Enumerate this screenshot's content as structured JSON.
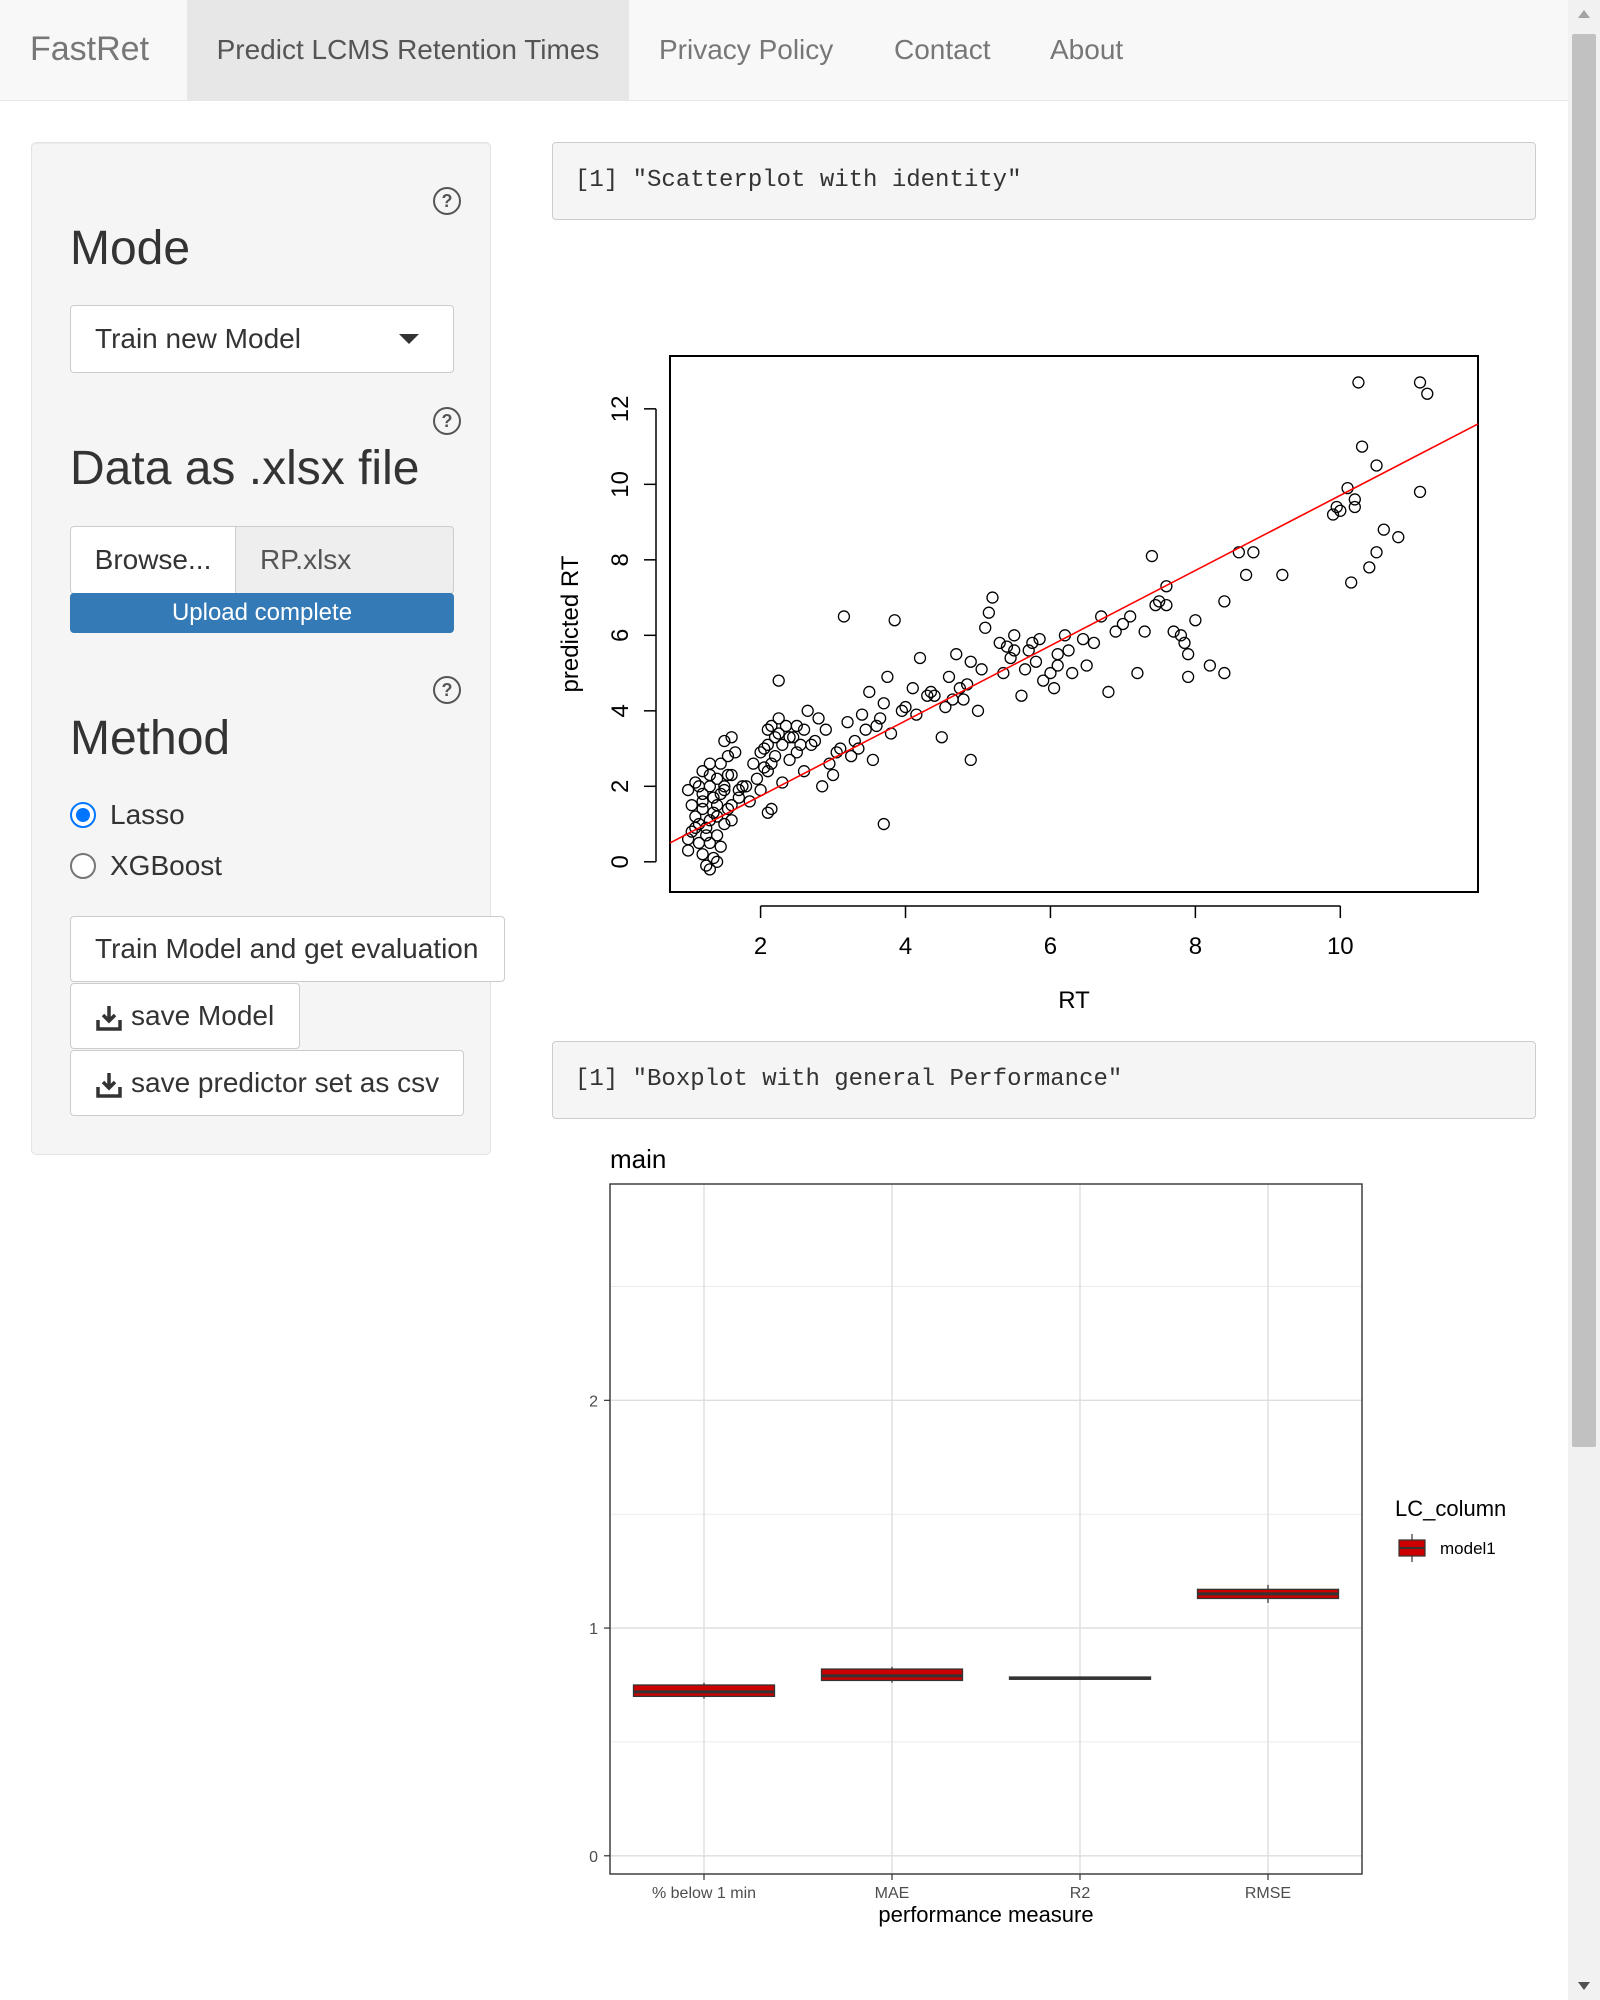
{
  "navbar": {
    "brand": "FastRet",
    "tabs": [
      {
        "label": "Predict LCMS Retention Times",
        "active": true
      },
      {
        "label": "Privacy Policy",
        "active": false
      },
      {
        "label": "Contact",
        "active": false
      },
      {
        "label": "About",
        "active": false
      }
    ]
  },
  "sidebar": {
    "help_glyph": "?",
    "mode": {
      "label": "Mode",
      "selected": "Train new Model"
    },
    "data": {
      "label": "Data as .xlsx file",
      "browse_label": "Browse...",
      "file_name": "RP.xlsx",
      "progress_text": "Upload complete",
      "progress_fraction": 1.0
    },
    "method": {
      "label": "Method",
      "options": [
        {
          "label": "Lasso",
          "checked": true
        },
        {
          "label": "XGBoost",
          "checked": false
        }
      ]
    },
    "buttons": {
      "train": "Train Model and get evaluation",
      "save_model": "save Model",
      "save_predictors": "save predictor set as csv"
    }
  },
  "main": {
    "scatter_caption": "[1] \"Scatterplot with identity\"",
    "boxplot_caption": "[1] \"Boxplot with general Performance\""
  },
  "colors": {
    "accent": "#337ab7",
    "radio": "#0075ff",
    "fit_line": "#ff0000",
    "box_fill": "#cc0000"
  },
  "chart_data": [
    {
      "type": "scatter",
      "xlabel": "RT",
      "ylabel": "predicted RT",
      "xticks": [
        "2",
        "4",
        "6",
        "8",
        "10"
      ],
      "yticks": [
        "0",
        "2",
        "4",
        "6",
        "8",
        "10",
        "12"
      ],
      "xlim": [
        0.75,
        11.9
      ],
      "ylim": [
        -0.8,
        13.4
      ],
      "reference_line": {
        "x": [
          0.75,
          11.9
        ],
        "y": [
          0.5,
          11.6
        ]
      },
      "points": [
        [
          1.0,
          0.3
        ],
        [
          1.05,
          0.8
        ],
        [
          1.1,
          1.2
        ],
        [
          1.15,
          0.5
        ],
        [
          1.2,
          1.6
        ],
        [
          1.25,
          0.9
        ],
        [
          1.3,
          2.0
        ],
        [
          1.35,
          1.3
        ],
        [
          1.4,
          0.7
        ],
        [
          1.45,
          1.8
        ],
        [
          1.0,
          1.9
        ],
        [
          1.1,
          2.1
        ],
        [
          1.2,
          2.4
        ],
        [
          1.3,
          2.6
        ],
        [
          1.4,
          2.2
        ],
        [
          1.5,
          3.2
        ],
        [
          1.55,
          2.8
        ],
        [
          1.6,
          3.3
        ],
        [
          1.35,
          0.1
        ],
        [
          1.25,
          -0.1
        ],
        [
          1.3,
          -0.2
        ],
        [
          1.4,
          0.0
        ],
        [
          1.15,
          1.0
        ],
        [
          1.2,
          1.4
        ],
        [
          1.3,
          1.1
        ],
        [
          1.4,
          1.5
        ],
        [
          1.5,
          1.9
        ],
        [
          1.6,
          2.3
        ],
        [
          1.7,
          1.7
        ],
        [
          1.8,
          2.0
        ],
        [
          1.9,
          2.6
        ],
        [
          2.0,
          1.9
        ],
        [
          2.1,
          2.4
        ],
        [
          2.05,
          3.0
        ],
        [
          2.1,
          3.5
        ],
        [
          2.2,
          2.8
        ],
        [
          2.3,
          3.1
        ],
        [
          2.15,
          1.4
        ],
        [
          2.1,
          1.3
        ],
        [
          2.25,
          3.8
        ],
        [
          2.4,
          3.3
        ],
        [
          2.5,
          3.6
        ],
        [
          2.6,
          2.4
        ],
        [
          2.7,
          3.1
        ],
        [
          2.8,
          3.8
        ],
        [
          2.9,
          3.5
        ],
        [
          3.0,
          2.3
        ],
        [
          3.1,
          3.0
        ],
        [
          3.2,
          3.7
        ],
        [
          3.3,
          3.2
        ],
        [
          3.4,
          3.9
        ],
        [
          3.5,
          4.5
        ],
        [
          3.6,
          3.6
        ],
        [
          3.7,
          4.2
        ],
        [
          3.75,
          4.9
        ],
        [
          3.7,
          1.0
        ],
        [
          3.15,
          6.5
        ],
        [
          3.85,
          6.4
        ],
        [
          2.25,
          4.8
        ],
        [
          3.8,
          3.4
        ],
        [
          4.0,
          4.1
        ],
        [
          4.1,
          4.6
        ],
        [
          4.2,
          5.4
        ],
        [
          4.4,
          4.4
        ],
        [
          4.5,
          3.3
        ],
        [
          4.6,
          4.9
        ],
        [
          4.7,
          5.5
        ],
        [
          4.8,
          4.3
        ],
        [
          4.9,
          5.3
        ],
        [
          5.0,
          4.0
        ],
        [
          5.1,
          6.2
        ],
        [
          5.2,
          7.0
        ],
        [
          5.3,
          5.8
        ],
        [
          5.4,
          5.7
        ],
        [
          5.5,
          6.0
        ],
        [
          5.6,
          4.4
        ],
        [
          5.7,
          5.6
        ],
        [
          5.8,
          5.3
        ],
        [
          5.9,
          4.8
        ],
        [
          6.0,
          5.0
        ],
        [
          6.1,
          5.5
        ],
        [
          6.2,
          6.0
        ],
        [
          6.3,
          5.0
        ],
        [
          6.5,
          5.2
        ],
        [
          6.7,
          6.5
        ],
        [
          6.8,
          4.5
        ],
        [
          7.0,
          6.3
        ],
        [
          7.2,
          5.0
        ],
        [
          7.4,
          8.1
        ],
        [
          7.5,
          6.9
        ],
        [
          7.6,
          7.3
        ],
        [
          7.7,
          6.1
        ],
        [
          7.8,
          6.0
        ],
        [
          7.9,
          5.5
        ],
        [
          8.0,
          6.4
        ],
        [
          8.2,
          5.2
        ],
        [
          8.4,
          5.0
        ],
        [
          8.4,
          6.9
        ],
        [
          8.6,
          8.2
        ],
        [
          8.7,
          7.6
        ],
        [
          8.8,
          8.2
        ],
        [
          9.2,
          7.6
        ],
        [
          9.9,
          9.2
        ],
        [
          10.0,
          9.3
        ],
        [
          10.1,
          9.9
        ],
        [
          10.15,
          7.4
        ],
        [
          10.2,
          9.4
        ],
        [
          10.25,
          12.7
        ],
        [
          10.3,
          11.0
        ],
        [
          10.5,
          10.5
        ],
        [
          10.4,
          7.8
        ],
        [
          10.5,
          8.2
        ],
        [
          10.6,
          8.8
        ],
        [
          10.8,
          8.6
        ],
        [
          11.1,
          12.7
        ],
        [
          11.2,
          12.4
        ],
        [
          11.1,
          9.8
        ],
        [
          9.95,
          9.4
        ],
        [
          10.2,
          9.6
        ],
        [
          7.9,
          4.9
        ],
        [
          1.2,
          1.8
        ],
        [
          1.3,
          2.3
        ],
        [
          1.45,
          2.6
        ],
        [
          1.55,
          1.4
        ],
        [
          1.6,
          1.1
        ],
        [
          1.65,
          2.9
        ],
        [
          1.25,
          0.7
        ],
        [
          1.35,
          1.7
        ],
        [
          1.45,
          0.4
        ],
        [
          1.5,
          1.0
        ],
        [
          2.0,
          2.9
        ],
        [
          2.1,
          3.1
        ],
        [
          2.15,
          2.6
        ],
        [
          2.2,
          3.3
        ],
        [
          2.3,
          2.1
        ],
        [
          2.4,
          2.7
        ],
        [
          2.5,
          2.9
        ],
        [
          2.6,
          3.5
        ],
        [
          2.65,
          4.0
        ],
        [
          2.75,
          3.2
        ],
        [
          2.85,
          2.0
        ],
        [
          2.95,
          2.6
        ],
        [
          3.05,
          2.9
        ],
        [
          3.25,
          2.8
        ],
        [
          3.35,
          3.0
        ],
        [
          3.45,
          3.5
        ],
        [
          3.55,
          2.7
        ],
        [
          3.65,
          3.8
        ],
        [
          4.3,
          4.4
        ],
        [
          4.55,
          4.1
        ],
        [
          4.65,
          4.3
        ],
        [
          4.75,
          4.6
        ],
        [
          4.85,
          4.7
        ],
        [
          5.05,
          5.1
        ],
        [
          5.15,
          6.6
        ],
        [
          5.35,
          5.0
        ],
        [
          5.45,
          5.4
        ],
        [
          5.65,
          5.1
        ],
        [
          5.75,
          5.8
        ],
        [
          5.85,
          5.9
        ],
        [
          6.05,
          4.6
        ],
        [
          6.25,
          5.6
        ],
        [
          6.45,
          5.9
        ],
        [
          6.6,
          5.8
        ],
        [
          6.9,
          6.1
        ],
        [
          7.1,
          6.5
        ],
        [
          7.3,
          6.1
        ],
        [
          7.45,
          6.8
        ],
        [
          7.6,
          6.8
        ],
        [
          7.85,
          5.8
        ],
        [
          1.05,
          1.5
        ],
        [
          1.15,
          2.0
        ],
        [
          1.1,
          0.9
        ],
        [
          1.0,
          0.6
        ],
        [
          1.2,
          0.2
        ],
        [
          1.3,
          0.5
        ],
        [
          1.4,
          1.2
        ],
        [
          1.5,
          2.0
        ],
        [
          1.55,
          2.3
        ],
        [
          1.6,
          1.5
        ],
        [
          1.7,
          1.9
        ],
        [
          1.75,
          2.0
        ],
        [
          1.85,
          1.6
        ],
        [
          1.95,
          2.2
        ],
        [
          2.05,
          2.5
        ],
        [
          2.15,
          3.6
        ],
        [
          2.25,
          3.4
        ],
        [
          2.35,
          3.6
        ],
        [
          2.45,
          3.3
        ],
        [
          2.55,
          3.1
        ],
        [
          4.9,
          2.7
        ],
        [
          5.5,
          5.6
        ],
        [
          6.1,
          5.2
        ],
        [
          3.95,
          4.0
        ],
        [
          4.15,
          3.9
        ],
        [
          4.35,
          4.5
        ]
      ]
    },
    {
      "type": "box",
      "title": "main",
      "xlabel": "performance measure",
      "categories": [
        "% below 1 min",
        "MAE",
        "R2",
        "RMSE"
      ],
      "yticks": [
        "0",
        "1",
        "2"
      ],
      "ylim": [
        -0.08,
        2.95
      ],
      "legend_title": "LC_column",
      "legend_position": "right",
      "series": [
        {
          "name": "model1",
          "values": [
            0.72,
            0.79,
            0.78,
            1.15
          ],
          "box_low": [
            0.7,
            0.77,
            0.775,
            1.13
          ],
          "box_high": [
            0.75,
            0.82,
            0.785,
            1.17
          ],
          "whisker_low": [
            0.69,
            0.76,
            0.78,
            1.11
          ],
          "whisker_high": [
            0.76,
            0.83,
            0.78,
            1.19
          ]
        }
      ]
    }
  ]
}
